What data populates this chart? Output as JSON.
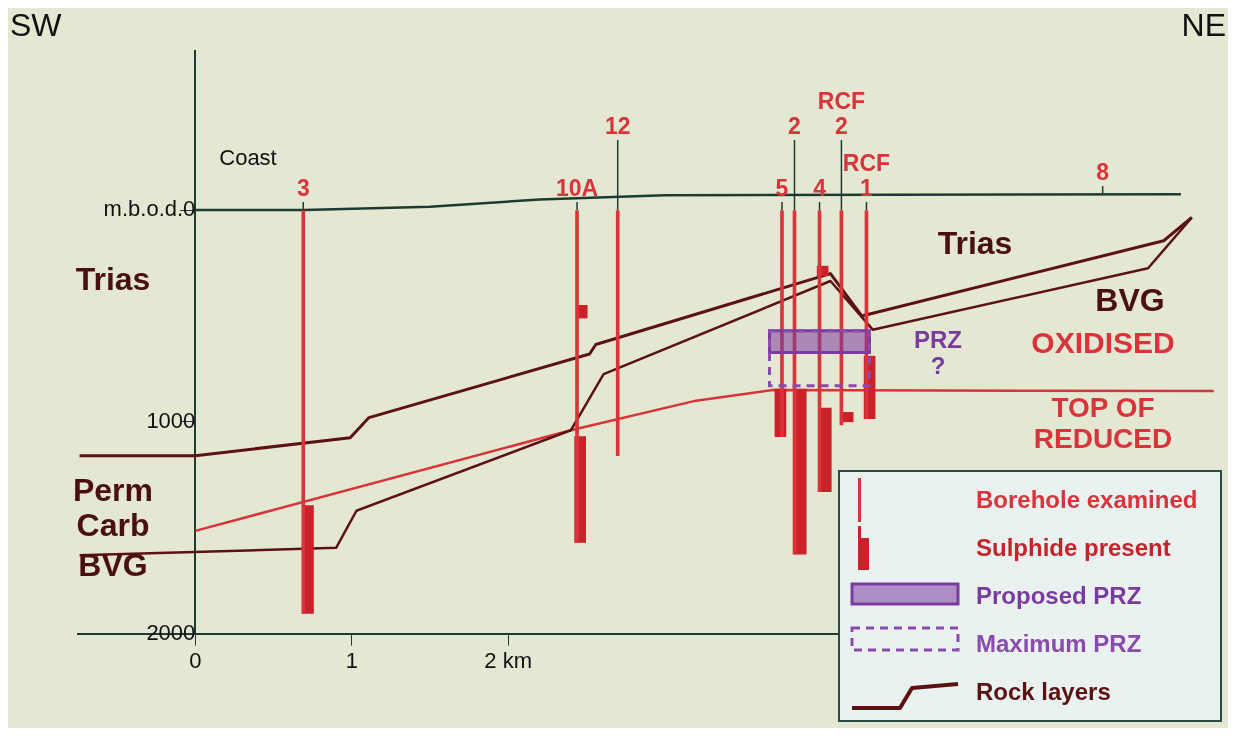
{
  "chart_data": {
    "type": "line",
    "xlim": [
      -0.75,
      6.55
    ],
    "xticks": [
      0,
      1,
      {
        "value": 2,
        "label": "2 km"
      }
    ],
    "ylim": [
      2000,
      -750
    ],
    "yticks": [
      {
        "value": 0,
        "label": "m.b.o.d.0"
      },
      1000,
      2000
    ],
    "grid": false,
    "legend": "bottom right",
    "series": [
      {
        "name": "Borehole examined",
        "type": "bar",
        "color": "#d8343a",
        "x": [
          0.69,
          2.44,
          2.7,
          3.75,
          3.83,
          3.99,
          4.13,
          4.29
        ],
        "values": [
          1905,
          1570,
          1160,
          1070,
          1625,
          1330,
          1015,
          985
        ]
      },
      {
        "name": "Sulphide present",
        "type": "bar",
        "color": "#c92229",
        "x": [
          0.72,
          2.46,
          2.47,
          3.74,
          3.87,
          4.01,
          4.03,
          4.17,
          4.31
        ],
        "base": [
          1395,
          1070,
          450,
          845,
          845,
          265,
          935,
          955,
          690
        ],
        "values": [
          510,
          500,
          60,
          225,
          780,
          45,
          395,
          45,
          295
        ]
      },
      {
        "name": "Proposed PRZ",
        "type": "bar",
        "color": "#7b3aa0",
        "x": [
          3.99
        ],
        "base": [
          570
        ],
        "values": [
          103
        ]
      },
      {
        "name": "Maximum PRZ",
        "type": "bar",
        "line_style": "dashed",
        "color": "#8a4ab0",
        "x": [
          3.99
        ],
        "base": [
          570
        ],
        "values": [
          260
        ]
      },
      {
        "name": "Rock layers",
        "color": "#5c1212",
        "x": [
          -0.74,
          0,
          0.99,
          1.11,
          2.52,
          2.56,
          4.06,
          4.26,
          6.19,
          6.37
        ],
        "values": [
          1160,
          1160,
          1075,
          980,
          680,
          635,
          300,
          500,
          145,
          35
        ]
      },
      {
        "color": "#5c1212",
        "x": [
          -0.74,
          0.9,
          1.03,
          2.4,
          2.61,
          4.06,
          4.33,
          6.09,
          6.37
        ],
        "values": [
          1630,
          1595,
          1420,
          1040,
          775,
          335,
          565,
          275,
          35
        ]
      },
      {
        "color": "#d8343a",
        "x": [
          0,
          2.4,
          3.2,
          3.69,
          6.51
        ],
        "values": [
          1515,
          1040,
          900,
          850,
          855
        ]
      },
      {
        "color": "#1d3b32",
        "x": [
          0,
          0.7,
          1.5,
          2.2,
          3,
          6.3
        ],
        "values": [
          0,
          0,
          -15,
          -50,
          -70,
          -75
        ]
      }
    ],
    "annotations": [
      "SW",
      "NE",
      "Coast",
      "Trias",
      "Trias",
      "BVG",
      "Perm\nCarb",
      "BVG",
      "PRZ\n?",
      "OXIDISED",
      "TOP OF\nREDUCED",
      {
        "text": "3",
        "x": 0.69,
        "y": 0
      },
      {
        "text": "10A",
        "x": 2.44,
        "y": 0
      },
      {
        "text": "12",
        "x": 2.7,
        "y": 0
      },
      {
        "text": "5",
        "x": 3.75,
        "y": 0
      },
      {
        "text": "2",
        "x": 3.83,
        "y": 0
      },
      {
        "text": "4",
        "x": 3.99,
        "y": 0
      },
      {
        "text": "RCF\n2",
        "x": 4.13,
        "y": 0
      },
      {
        "text": "RCF\n1",
        "x": 4.29,
        "y": 0
      },
      {
        "text": "8",
        "x": 5.8,
        "y": -75
      }
    ]
  }
}
